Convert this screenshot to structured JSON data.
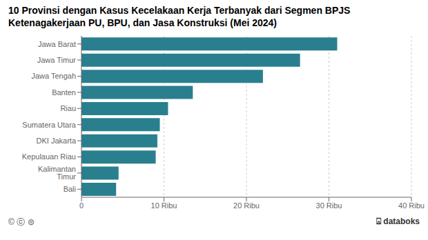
{
  "chart_data": {
    "type": "bar",
    "orientation": "horizontal",
    "title": "10 Provinsi dengan Kasus Kecelakaan Kerja Terbanyak dari Segmen BPJS Ketenagakerjaan PU, BPU, dan Jasa Konstruksi (Mei 2024)",
    "categories": [
      "Bali",
      "Kalimantan Timur",
      "Kepulauan Riau",
      "DKI Jakarta",
      "Sumatera Utara",
      "Riau",
      "Banten",
      "Jawa Tengah",
      "Jawa Timur",
      "Jawa Barat"
    ],
    "values": [
      4200,
      4500,
      9000,
      9200,
      9500,
      10500,
      13500,
      22000,
      26500,
      31000
    ],
    "color": "#2a7f8e",
    "xlim": [
      0,
      40000
    ],
    "xticks": [
      0,
      {
        "value": 10000,
        "label": "10 Ribu"
      },
      {
        "value": 20000,
        "label": "20 Ribu"
      },
      {
        "value": 30000,
        "label": "30 Ribu"
      },
      {
        "value": 40000,
        "label": "40 Ribu"
      }
    ],
    "grid": true,
    "annotations": [
      "© ⓒ ⊜",
      "⍓",
      "databoks"
    ]
  }
}
